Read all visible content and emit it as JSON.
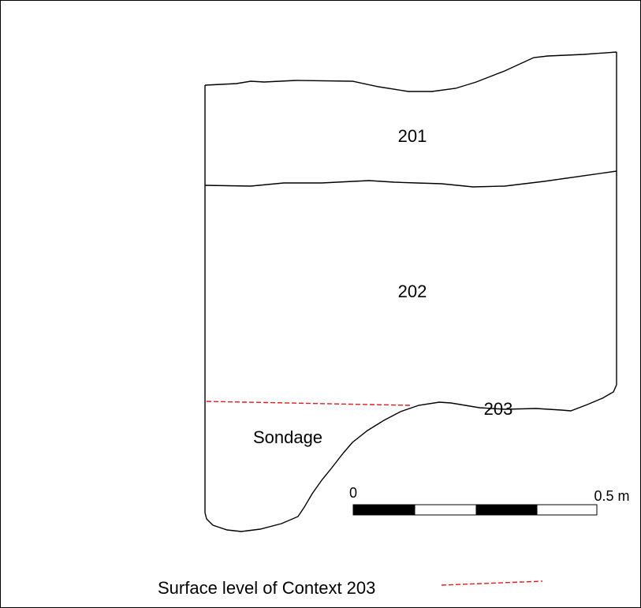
{
  "section": {
    "contexts": [
      {
        "id": "context-201",
        "label": "201"
      },
      {
        "id": "context-202",
        "label": "202"
      },
      {
        "id": "context-203",
        "label": "203"
      }
    ],
    "sondage_label": "Sondage"
  },
  "scale_bar": {
    "start_label": "0",
    "end_label": "0.5 m",
    "segment_colors": [
      "#000000",
      "#ffffff",
      "#000000",
      "#ffffff"
    ]
  },
  "legend": {
    "surface_label": "Surface  level of Context 203",
    "line_color": "#e41a1c",
    "line_style": "dashed"
  },
  "colors": {
    "outline": "#000000",
    "background": "#ffffff"
  }
}
